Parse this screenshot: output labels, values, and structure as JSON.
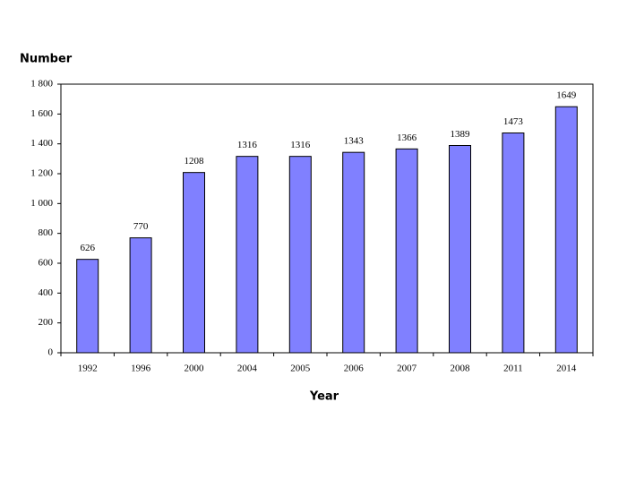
{
  "chart_data": {
    "type": "bar",
    "y_label": "Number",
    "x_label": "Year",
    "categories": [
      "1992",
      "1996",
      "2000",
      "2004",
      "2005",
      "2006",
      "2007",
      "2008",
      "2011",
      "2014"
    ],
    "values": [
      626,
      770,
      1208,
      1316,
      1316,
      1343,
      1366,
      1389,
      1473,
      1649
    ],
    "color": "#8080ff",
    "ylim": [
      0,
      1800
    ],
    "yticks": [
      0,
      200,
      400,
      600,
      800,
      {
        "value": 1000,
        "label": "1 000"
      },
      {
        "value": 1200,
        "label": "1 200"
      },
      {
        "value": 1400,
        "label": "1 400"
      },
      {
        "value": 1600,
        "label": "1 600"
      },
      {
        "value": 1800,
        "label": "1 800"
      }
    ],
    "grid": false
  }
}
